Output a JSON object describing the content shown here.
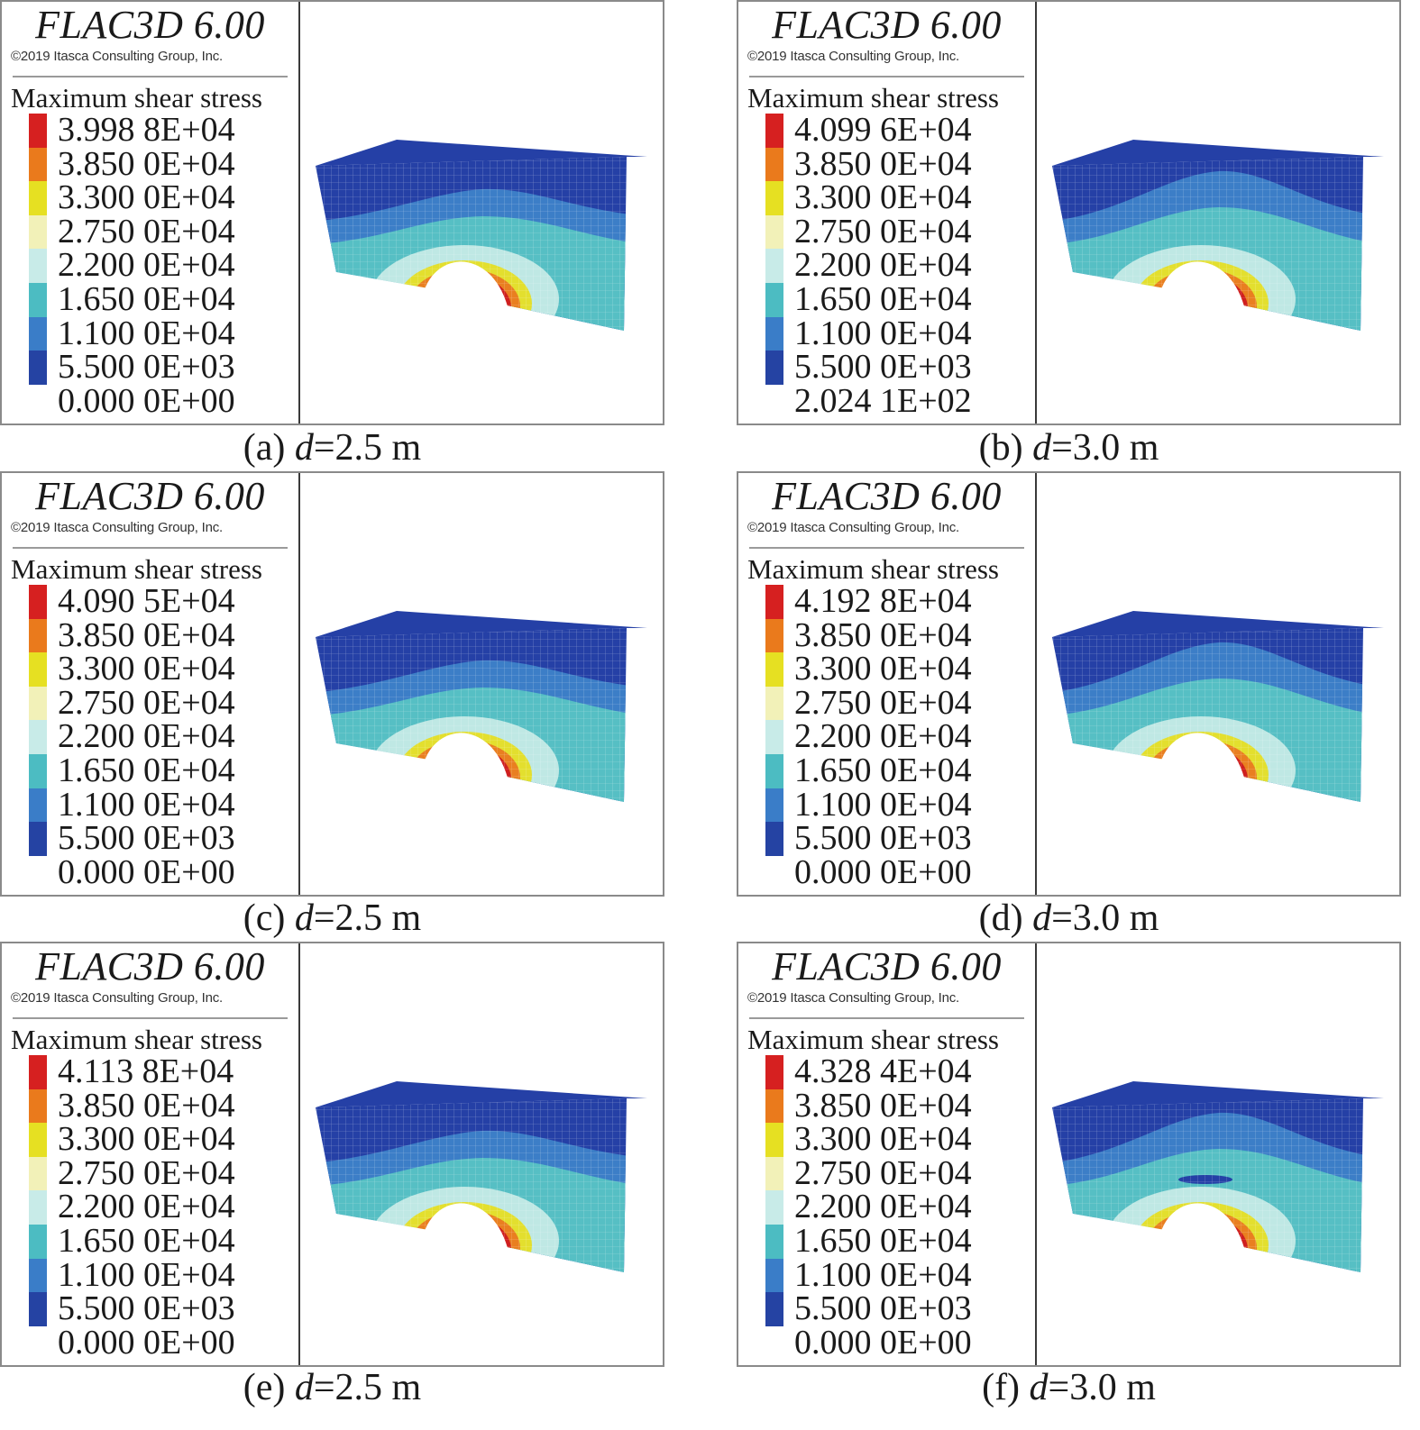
{
  "colorbar_colors": [
    "#d62020",
    "#ea7a1c",
    "#e6e022",
    "#f2f1b8",
    "#c8ebe8",
    "#4cbcc2",
    "#3a7dc8",
    "#2543a3"
  ],
  "model_colors": {
    "deep": "#2540a6",
    "blue": "#3c7ec7",
    "cyan": "#56bfc4",
    "pale": "#bfe8e4",
    "yellow": "#e3df2e",
    "orange": "#e97f20",
    "red": "#cf1f1f"
  },
  "panels": [
    {
      "title": "FLAC3D 6.00",
      "copyright": "©2019 Itasca Consulting Group, Inc.",
      "quantity": "Maximum shear stress",
      "values": [
        "3.998 8E+04",
        "3.850 0E+04",
        "3.300 0E+04",
        "2.750 0E+04",
        "2.200 0E+04",
        "1.650 0E+04",
        "1.100 0E+04",
        "5.500 0E+03",
        "0.000 0E+00"
      ],
      "caption_label": "(a)",
      "caption_var": "d",
      "caption_value": "=2.5 m"
    },
    {
      "title": "FLAC3D 6.00",
      "copyright": "©2019 Itasca Consulting Group, Inc.",
      "quantity": "Maximum shear stress",
      "values": [
        "4.099 6E+04",
        "3.850 0E+04",
        "3.300 0E+04",
        "2.750 0E+04",
        "2.200 0E+04",
        "1.650 0E+04",
        "1.100 0E+04",
        "5.500 0E+03",
        "2.024 1E+02"
      ],
      "caption_label": "(b)",
      "caption_var": "d",
      "caption_value": "=3.0 m"
    },
    {
      "title": "FLAC3D 6.00",
      "copyright": "©2019 Itasca Consulting Group, Inc.",
      "quantity": "Maximum shear stress",
      "values": [
        "4.090 5E+04",
        "3.850 0E+04",
        "3.300 0E+04",
        "2.750 0E+04",
        "2.200 0E+04",
        "1.650 0E+04",
        "1.100 0E+04",
        "5.500 0E+03",
        "0.000 0E+00"
      ],
      "caption_label": "(c)",
      "caption_var": "d",
      "caption_value": "=2.5 m"
    },
    {
      "title": "FLAC3D 6.00",
      "copyright": "©2019 Itasca Consulting Group, Inc.",
      "quantity": "Maximum shear stress",
      "values": [
        "4.192 8E+04",
        "3.850 0E+04",
        "3.300 0E+04",
        "2.750 0E+04",
        "2.200 0E+04",
        "1.650 0E+04",
        "1.100 0E+04",
        "5.500 0E+03",
        "0.000 0E+00"
      ],
      "caption_label": "(d)",
      "caption_var": "d",
      "caption_value": "=3.0 m"
    },
    {
      "title": "FLAC3D 6.00",
      "copyright": "©2019 Itasca Consulting Group, Inc.",
      "quantity": "Maximum shear stress",
      "values": [
        "4.113 8E+04",
        "3.850 0E+04",
        "3.300 0E+04",
        "2.750 0E+04",
        "2.200 0E+04",
        "1.650 0E+04",
        "1.100 0E+04",
        "5.500 0E+03",
        "0.000 0E+00"
      ],
      "caption_label": "(e)",
      "caption_var": "d",
      "caption_value": "=2.5 m"
    },
    {
      "title": "FLAC3D 6.00",
      "copyright": "©2019 Itasca Consulting Group, Inc.",
      "quantity": "Maximum shear stress",
      "values": [
        "4.328 4E+04",
        "3.850 0E+04",
        "3.300 0E+04",
        "2.750 0E+04",
        "2.200 0E+04",
        "1.650 0E+04",
        "1.100 0E+04",
        "5.500 0E+03",
        "0.000 0E+00"
      ],
      "caption_label": "(f)",
      "caption_var": "d",
      "caption_value": "=3.0 m"
    }
  ]
}
